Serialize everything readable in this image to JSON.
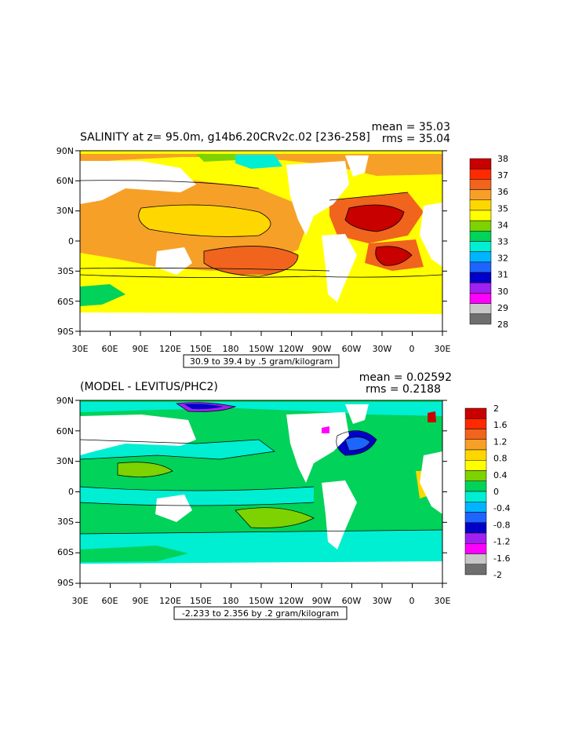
{
  "colors": {
    "land": "#ffffff",
    "frame": "#000000",
    "contour": "#000000"
  },
  "panel1": {
    "title": "SALINITY at z=  95.0m, g14b6.20CRv2c.02 [236-258]",
    "mean": "mean = 35.03",
    "rms": "rms = 35.04",
    "range_label": "30.9 to 39.4 by .5 gram/kilogram",
    "colorbar": {
      "labels": [
        "38",
        "37",
        "36",
        "35",
        "34",
        "33",
        "32",
        "31",
        "30",
        "29",
        "28"
      ],
      "colors": [
        "#c80000",
        "#ff2a00",
        "#f0641e",
        "#f7a028",
        "#ffd700",
        "#ffff00",
        "#7dd200",
        "#00d25a",
        "#00eed2",
        "#00b4ff",
        "#1e64ff",
        "#0000c8",
        "#a020f0",
        "#ff00ff",
        "#c8c8c8",
        "#6e6e6e"
      ]
    }
  },
  "panel2": {
    "title": "(MODEL - LEVITUS/PHC2)",
    "mean": "mean = 0.02592",
    "rms": "rms = 0.2188",
    "range_label": "-2.233 to 2.356 by .2 gram/kilogram",
    "colorbar": {
      "labels": [
        "2",
        "1.6",
        "1.2",
        "0.8",
        "0.4",
        "0",
        "-0.4",
        "-0.8",
        "-1.2",
        "-1.6",
        "-2"
      ],
      "colors": [
        "#c80000",
        "#ff2a00",
        "#f0641e",
        "#f7a028",
        "#ffd700",
        "#ffff00",
        "#7dd200",
        "#00d25a",
        "#00eed2",
        "#00b4ff",
        "#1e64ff",
        "#0000c8",
        "#a020f0",
        "#ff00ff",
        "#c8c8c8",
        "#6e6e6e"
      ]
    }
  },
  "axes": {
    "lat_labels": [
      "90N",
      "60N",
      "30N",
      "0",
      "30S",
      "60S",
      "90S"
    ],
    "lon_labels": [
      "30E",
      "60E",
      "90E",
      "120E",
      "150E",
      "180",
      "150W",
      "120W",
      "90W",
      "60W",
      "30W",
      "0",
      "30E"
    ]
  }
}
